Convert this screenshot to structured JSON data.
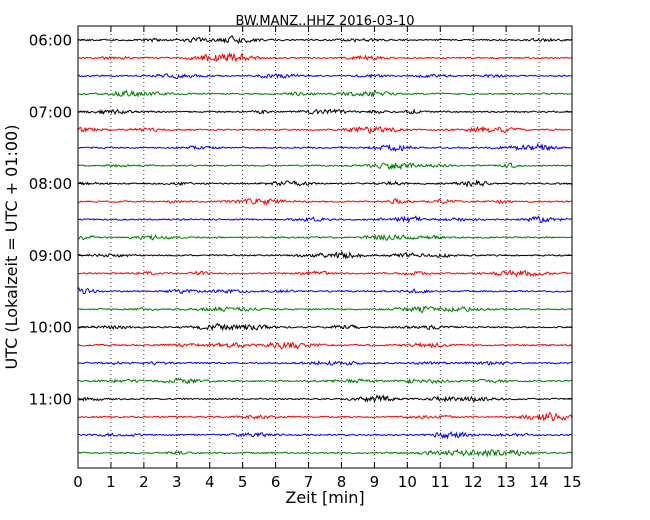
{
  "chart_data": {
    "type": "line",
    "subtype": "seismogram-dayplot",
    "title": "BW.MANZ..HHZ 2016-03-10",
    "xlabel": "Zeit  [min]",
    "ylabel": "UTC (Lokalzeit = UTC + 01:00)",
    "xlim": [
      0,
      15
    ],
    "x_ticks": [
      "0",
      "1",
      "2",
      "3",
      "4",
      "5",
      "6",
      "7",
      "8",
      "9",
      "10",
      "11",
      "12",
      "13",
      "14",
      "15"
    ],
    "y_ticks": [
      {
        "label": "06:00",
        "row": 0
      },
      {
        "label": "07:00",
        "row": 4
      },
      {
        "label": "08:00",
        "row": 8
      },
      {
        "label": "09:00",
        "row": 12
      },
      {
        "label": "10:00",
        "row": 16
      },
      {
        "label": "11:00",
        "row": 20
      }
    ],
    "rows_per_hour": 4,
    "row_count": 24,
    "trace_colors": [
      "#000000",
      "#ff0000",
      "#0000ff",
      "#008000"
    ],
    "vertical_grid": true,
    "grid_style": "dotted"
  }
}
